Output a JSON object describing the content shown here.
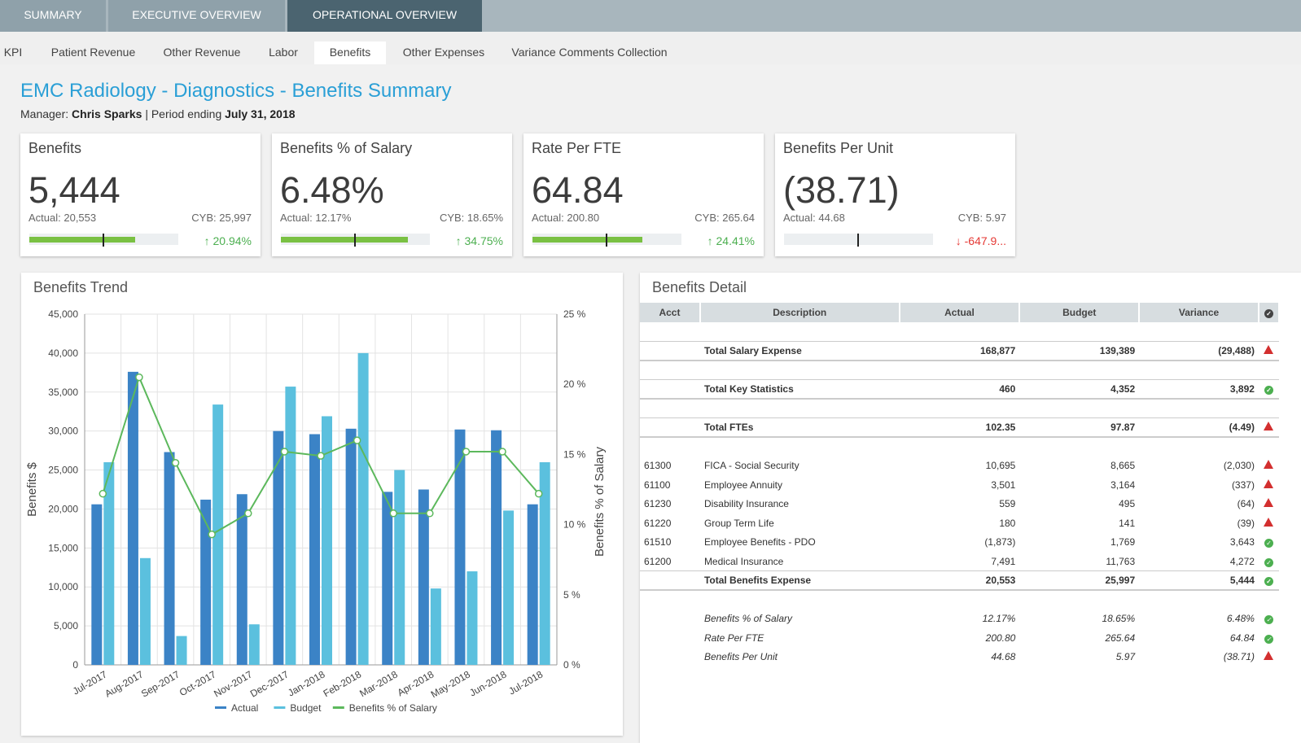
{
  "top_tabs": [
    "SUMMARY",
    "EXECUTIVE OVERVIEW",
    "OPERATIONAL OVERVIEW"
  ],
  "sub_tabs": [
    "KPI",
    "Patient Revenue",
    "Other Revenue",
    "Labor",
    "Benefits",
    "Other Expenses",
    "Variance Comments Collection"
  ],
  "header": {
    "title": "EMC Radiology - Diagnostics - Benefits Summary",
    "manager_label": "Manager:",
    "manager": "Chris Sparks",
    "period_label": "| Period ending",
    "period": "July 31, 2018"
  },
  "kpis": [
    {
      "title": "Benefits",
      "value": "5,444",
      "actual": "Actual: 20,553",
      "cyb": "CYB: 25,997",
      "change": "20.94%",
      "direction": "up",
      "fill_fraction": 0.71,
      "marker_fraction": 0.49
    },
    {
      "title": "Benefits % of Salary",
      "value": "6.48%",
      "actual": "Actual: 12.17%",
      "cyb": "CYB: 18.65%",
      "change": "34.75%",
      "direction": "up",
      "fill_fraction": 0.85,
      "marker_fraction": 0.49
    },
    {
      "title": "Rate Per FTE",
      "value": "64.84",
      "actual": "Actual: 200.80",
      "cyb": "CYB: 265.64",
      "change": "24.41%",
      "direction": "up",
      "fill_fraction": 0.74,
      "marker_fraction": 0.49
    },
    {
      "title": "Benefits Per Unit",
      "value": "(38.71)",
      "actual": "Actual: 44.68",
      "cyb": "CYB: 5.97",
      "change": "-647.9...",
      "direction": "down",
      "fill_fraction": 0,
      "marker_fraction": 0.49
    }
  ],
  "trend_panel": {
    "title": "Benefits Trend"
  },
  "chart_data": {
    "type": "bar",
    "categories": [
      "Jul-2017",
      "Aug-2017",
      "Sep-2017",
      "Oct-2017",
      "Nov-2017",
      "Dec-2017",
      "Jan-2018",
      "Feb-2018",
      "Mar-2018",
      "Apr-2018",
      "May-2018",
      "Jun-2018",
      "Jul-2018"
    ],
    "series": [
      {
        "name": "Actual",
        "type": "bar",
        "color": "#3b83c6",
        "values": [
          20600,
          37600,
          27300,
          21200,
          21900,
          30000,
          29600,
          30300,
          22200,
          22500,
          30200,
          30100,
          20600
        ]
      },
      {
        "name": "Budget",
        "type": "bar",
        "color": "#5bc0de",
        "values": [
          26000,
          13700,
          3700,
          33400,
          5200,
          35700,
          31900,
          40000,
          25000,
          9800,
          12000,
          19800,
          26000
        ]
      },
      {
        "name": "Benefits % of Salary",
        "type": "line",
        "axis": "right",
        "color": "#5cb85c",
        "values": [
          12.2,
          20.5,
          14.4,
          9.3,
          10.8,
          15.2,
          14.9,
          16.0,
          10.8,
          10.8,
          15.2,
          15.2,
          12.2
        ]
      }
    ],
    "ylabel": "Benefits $",
    "y2label": "Benefits % of Salary",
    "ylim": [
      0,
      45000
    ],
    "y2lim": [
      0,
      25
    ],
    "yticks": [
      "0",
      "5,000",
      "10,000",
      "15,000",
      "20,000",
      "25,000",
      "30,000",
      "35,000",
      "40,000",
      "45,000"
    ],
    "y2ticks": [
      "0 %",
      "5 %",
      "10 %",
      "15 %",
      "20 %",
      "25 %"
    ],
    "grid": true,
    "legend": "bottom"
  },
  "detail_panel": {
    "title": "Benefits Detail",
    "columns": [
      "Acct",
      "Description",
      "Actual",
      "Budget",
      "Variance"
    ],
    "rows": [
      {
        "kind": "spacer"
      },
      {
        "kind": "total",
        "acct": "",
        "desc": "Total Salary Expense",
        "actual": "168,877",
        "budget": "139,389",
        "variance": "(29,488)",
        "status": "warn"
      },
      {
        "kind": "spacer"
      },
      {
        "kind": "total",
        "acct": "",
        "desc": "Total Key Statistics",
        "actual": "460",
        "budget": "4,352",
        "variance": "3,892",
        "status": "ok"
      },
      {
        "kind": "spacer"
      },
      {
        "kind": "total",
        "acct": "",
        "desc": "Total FTEs",
        "actual": "102.35",
        "budget": "97.87",
        "variance": "(4.49)",
        "status": "warn"
      },
      {
        "kind": "spacer"
      },
      {
        "kind": "row",
        "acct": "61300",
        "desc": "FICA - Social Security",
        "actual": "10,695",
        "budget": "8,665",
        "variance": "(2,030)",
        "status": "warn"
      },
      {
        "kind": "row",
        "acct": "61100",
        "desc": "Employee Annuity",
        "actual": "3,501",
        "budget": "3,164",
        "variance": "(337)",
        "status": "warn"
      },
      {
        "kind": "row",
        "acct": "61230",
        "desc": "Disability Insurance",
        "actual": "559",
        "budget": "495",
        "variance": "(64)",
        "status": "warn"
      },
      {
        "kind": "row",
        "acct": "61220",
        "desc": "Group Term Life",
        "actual": "180",
        "budget": "141",
        "variance": "(39)",
        "status": "warn"
      },
      {
        "kind": "row",
        "acct": "61510",
        "desc": "Employee Benefits - PDO",
        "actual": "(1,873)",
        "budget": "1,769",
        "variance": "3,643",
        "status": "ok"
      },
      {
        "kind": "row",
        "acct": "61200",
        "desc": "Medical Insurance",
        "actual": "7,491",
        "budget": "11,763",
        "variance": "4,272",
        "status": "ok"
      },
      {
        "kind": "total",
        "acct": "",
        "desc": "Total Benefits Expense",
        "actual": "20,553",
        "budget": "25,997",
        "variance": "5,444",
        "status": "ok"
      },
      {
        "kind": "spacer"
      },
      {
        "kind": "italic",
        "acct": "",
        "desc": "Benefits % of Salary",
        "actual": "12.17%",
        "budget": "18.65%",
        "variance": "6.48%",
        "status": "ok"
      },
      {
        "kind": "italic",
        "acct": "",
        "desc": "Rate Per FTE",
        "actual": "200.80",
        "budget": "265.64",
        "variance": "64.84",
        "status": "ok"
      },
      {
        "kind": "italic",
        "acct": "",
        "desc": "Benefits Per Unit",
        "actual": "44.68",
        "budget": "5.97",
        "variance": "(38.71)",
        "status": "warn"
      }
    ]
  }
}
